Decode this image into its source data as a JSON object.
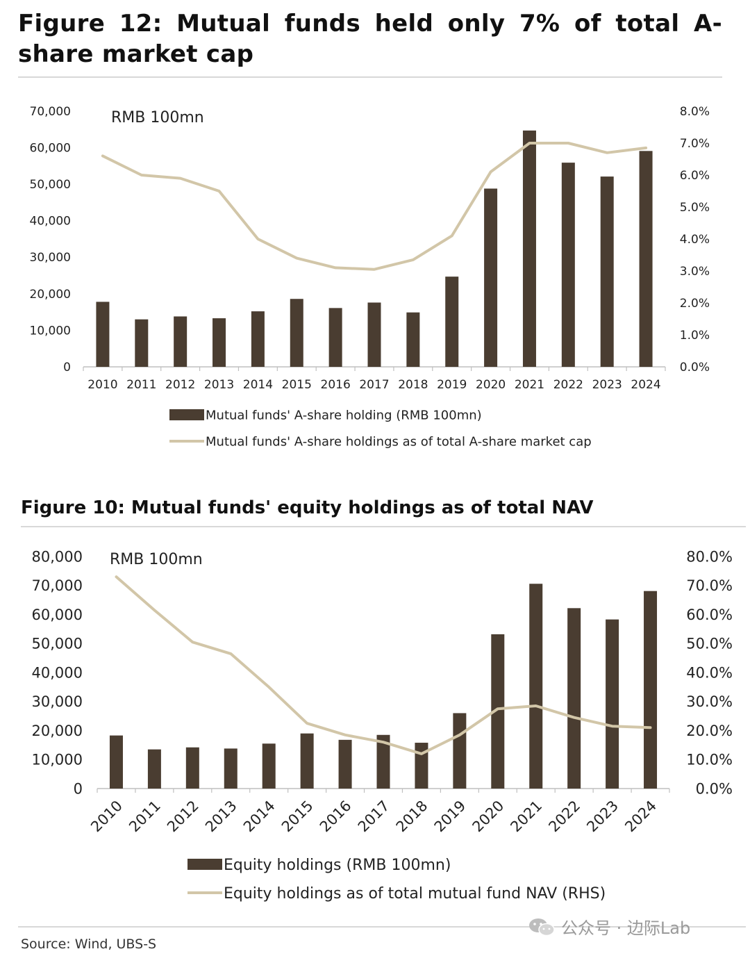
{
  "figure1": {
    "title": "Figure 12: Mutual funds held only 7% of total A-share market cap",
    "unit_label": "RMB 100mn",
    "legend": [
      "Mutual funds' A-share holding (RMB 100mn)",
      "Mutual funds' A-share holdings as of total A-share market cap"
    ],
    "colors": {
      "bar": "#4a3d31",
      "line": "#d2c6a8"
    }
  },
  "figure2": {
    "title": "Figure 10: Mutual funds' equity holdings as of total NAV",
    "unit_label": "RMB 100mn",
    "legend": [
      "Equity holdings (RMB 100mn)",
      "Equity holdings as of total mutual fund NAV (RHS)"
    ],
    "colors": {
      "bar": "#4a3d31",
      "line": "#d2c6a8"
    }
  },
  "source": "Source: Wind, UBS-S",
  "watermark": "公众号 · 边际Lab",
  "chart_data": [
    {
      "type": "bar",
      "categories": [
        "2010",
        "2011",
        "2012",
        "2013",
        "2014",
        "2015",
        "2016",
        "2017",
        "2018",
        "2019",
        "2020",
        "2021",
        "2022",
        "2023",
        "2024"
      ],
      "series": [
        {
          "name": "Mutual funds' A-share holding (RMB 100mn)",
          "type": "bar",
          "axis": "left",
          "values": [
            17800,
            13000,
            13800,
            13300,
            15200,
            18600,
            16100,
            17600,
            14900,
            24700,
            48800,
            64700,
            55900,
            52100,
            59100
          ]
        },
        {
          "name": "Mutual funds' A-share holdings as of total A-share market cap",
          "type": "line",
          "axis": "right",
          "values": [
            6.6,
            6.0,
            5.9,
            5.5,
            4.0,
            3.4,
            3.1,
            3.05,
            3.35,
            4.1,
            6.1,
            7.0,
            7.0,
            6.7,
            6.85
          ]
        }
      ],
      "ylim_left": [
        0,
        70000
      ],
      "ylim_right": [
        0,
        8.0
      ],
      "yticks_left": [
        "0",
        "10,000",
        "20,000",
        "30,000",
        "40,000",
        "50,000",
        "60,000",
        "70,000"
      ],
      "yticks_right": [
        "0.0%",
        "1.0%",
        "2.0%",
        "3.0%",
        "4.0%",
        "5.0%",
        "6.0%",
        "7.0%",
        "8.0%"
      ],
      "legend_position": "bottom",
      "grid": false
    },
    {
      "type": "bar",
      "categories": [
        "2010",
        "2011",
        "2012",
        "2013",
        "2014",
        "2015",
        "2016",
        "2017",
        "2018",
        "2019",
        "2020",
        "2021",
        "2022",
        "2023",
        "2024"
      ],
      "series": [
        {
          "name": "Equity holdings (RMB 100mn)",
          "type": "bar",
          "axis": "left",
          "values": [
            18300,
            13500,
            14200,
            13800,
            15500,
            19000,
            16800,
            18500,
            15800,
            26000,
            53200,
            70600,
            62200,
            58300,
            68100
          ]
        },
        {
          "name": "Equity holdings as of total mutual fund NAV (RHS)",
          "type": "line",
          "axis": "right",
          "values": [
            73.0,
            61.5,
            50.5,
            46.5,
            35.0,
            22.5,
            18.5,
            16.0,
            12.0,
            18.5,
            27.5,
            28.5,
            24.5,
            21.5,
            21.0
          ]
        }
      ],
      "ylim_left": [
        0,
        80000
      ],
      "ylim_right": [
        0,
        80.0
      ],
      "yticks_left": [
        "0",
        "10,000",
        "20,000",
        "30,000",
        "40,000",
        "50,000",
        "60,000",
        "70,000",
        "80,000"
      ],
      "yticks_right": [
        "0.0%",
        "10.0%",
        "20.0%",
        "30.0%",
        "40.0%",
        "50.0%",
        "60.0%",
        "70.0%",
        "80.0%"
      ],
      "legend_position": "bottom",
      "grid": false
    }
  ]
}
